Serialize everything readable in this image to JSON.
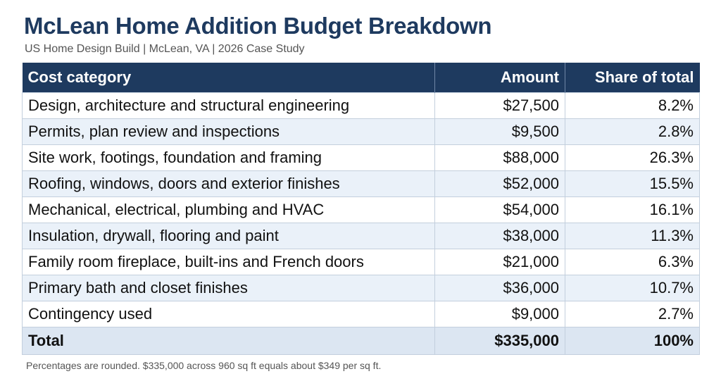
{
  "header": {
    "title": "McLean Home Addition Budget Breakdown",
    "subtitle": "US Home Design Build | McLean, VA | 2026 Case Study"
  },
  "table": {
    "columns": [
      "Cost category",
      "Amount",
      "Share of total"
    ],
    "rows": [
      {
        "category": "Design, architecture and structural engineering",
        "amount": "$27,500",
        "share": "8.2%"
      },
      {
        "category": "Permits, plan review and inspections",
        "amount": "$9,500",
        "share": "2.8%"
      },
      {
        "category": "Site work, footings, foundation and framing",
        "amount": "$88,000",
        "share": "26.3%"
      },
      {
        "category": "Roofing, windows, doors and exterior finishes",
        "amount": "$52,000",
        "share": "15.5%"
      },
      {
        "category": "Mechanical, electrical, plumbing and HVAC",
        "amount": "$54,000",
        "share": "16.1%"
      },
      {
        "category": "Insulation, drywall, flooring and paint",
        "amount": "$38,000",
        "share": "11.3%"
      },
      {
        "category": "Family room fireplace, built-ins and French doors",
        "amount": "$21,000",
        "share": "6.3%"
      },
      {
        "category": "Primary bath and closet finishes",
        "amount": "$36,000",
        "share": "10.7%"
      },
      {
        "category": "Contingency used",
        "amount": "$9,000",
        "share": "2.7%"
      }
    ],
    "total": {
      "category": "Total",
      "amount": "$335,000",
      "share": "100%"
    }
  },
  "footnote": "Percentages are rounded. $335,000 across 960 sq ft equals about $349 per sq ft.",
  "colors": {
    "title": "#1e3a5f",
    "header_bg": "#1e3a5f",
    "stripe": "#eaf1f9",
    "total_bg": "#dce6f2"
  }
}
